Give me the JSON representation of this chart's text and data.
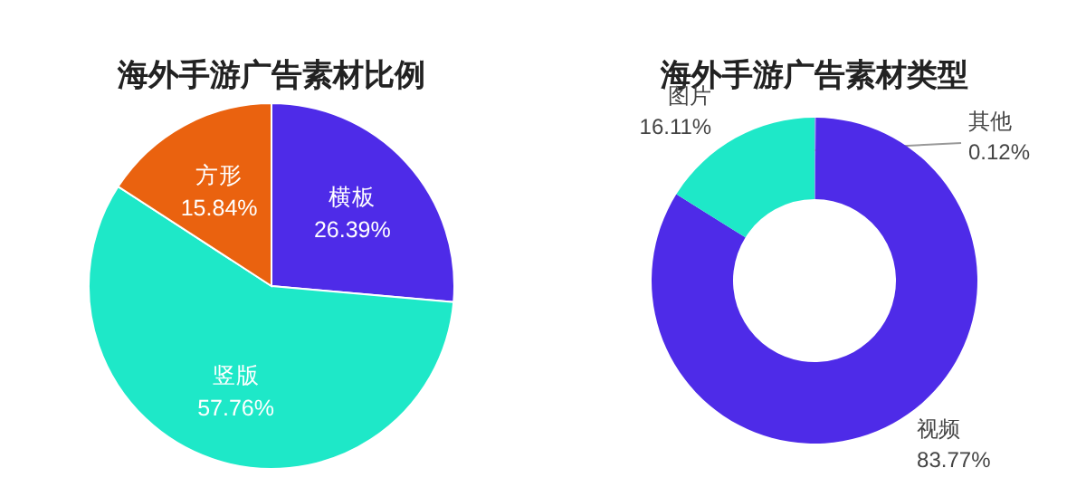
{
  "chart_data": [
    {
      "type": "pie",
      "title": "海外手游广告素材比例",
      "categories": [
        "横板",
        "竖版",
        "方形"
      ],
      "values": [
        26.39,
        57.76,
        15.84
      ],
      "colors": [
        "#4e2be8",
        "#1ee8c8",
        "#ea620f"
      ],
      "value_labels": [
        "26.39%",
        "57.76%",
        "15.84%"
      ]
    },
    {
      "type": "donut",
      "title": "海外手游广告素材类型",
      "categories": [
        "其他",
        "视频",
        "图片"
      ],
      "values": [
        0.12,
        83.77,
        16.11
      ],
      "colors": [
        "#9aa3f0",
        "#4e2be8",
        "#1ee8c8"
      ],
      "value_labels": [
        "0.12%",
        "83.77%",
        "16.11%"
      ]
    }
  ]
}
